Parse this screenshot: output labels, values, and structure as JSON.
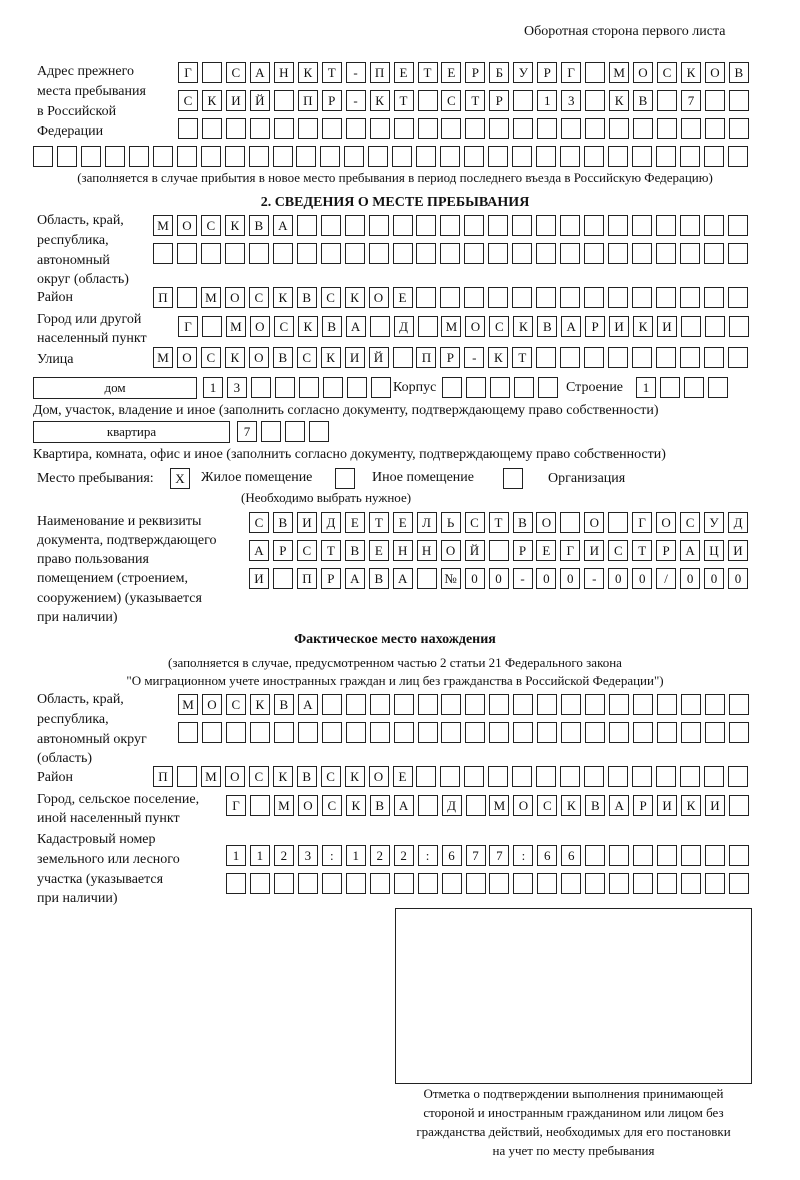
{
  "page_header": "Оборотная сторона первого листа",
  "prev_address": {
    "label_lines": [
      "Адрес прежнего",
      "места пребывания",
      "в Российской",
      "Федерации"
    ],
    "rows": [
      [
        "Г",
        "",
        "С",
        "А",
        "Н",
        "К",
        "Т",
        "-",
        "П",
        "Е",
        "Т",
        "Е",
        "Р",
        "Б",
        "У",
        "Р",
        "Г",
        "",
        "М",
        "О",
        "С",
        "К",
        "О",
        "В"
      ],
      [
        "С",
        "К",
        "И",
        "Й",
        "",
        "П",
        "Р",
        "-",
        "К",
        "Т",
        "",
        "С",
        "Т",
        "Р",
        "",
        "1",
        "3",
        "",
        "К",
        "В",
        "",
        "7",
        "",
        ""
      ],
      [
        "",
        "",
        "",
        "",
        "",
        "",
        "",
        "",
        "",
        "",
        "",
        "",
        "",
        "",
        "",
        "",
        "",
        "",
        "",
        "",
        "",
        "",
        "",
        ""
      ],
      [
        "",
        "",
        "",
        "",
        "",
        "",
        "",
        "",
        "",
        "",
        "",
        "",
        "",
        "",
        "",
        "",
        "",
        "",
        "",
        "",
        "",
        "",
        "",
        "",
        "",
        "",
        "",
        "",
        "",
        ""
      ]
    ],
    "note": "(заполняется в случае прибытия в новое место пребывания в период последнего въезда в Российскую Федерацию)"
  },
  "section2": {
    "title": "2. СВЕДЕНИЯ О МЕСТЕ ПРЕБЫВАНИЯ",
    "region_label_lines": [
      "Область, край,",
      "республика,",
      "автономный",
      "округ (область)"
    ],
    "region_rows": [
      [
        "М",
        "О",
        "С",
        "К",
        "В",
        "А",
        "",
        "",
        "",
        "",
        "",
        "",
        "",
        "",
        "",
        "",
        "",
        "",
        "",
        "",
        "",
        "",
        "",
        "",
        ""
      ],
      [
        "",
        "",
        "",
        "",
        "",
        "",
        "",
        "",
        "",
        "",
        "",
        "",
        "",
        "",
        "",
        "",
        "",
        "",
        "",
        "",
        "",
        "",
        "",
        "",
        ""
      ]
    ],
    "district_label": "Район",
    "district_row": [
      "П",
      "",
      "М",
      "О",
      "С",
      "К",
      "В",
      "С",
      "К",
      "О",
      "Е",
      "",
      "",
      "",
      "",
      "",
      "",
      "",
      "",
      "",
      "",
      "",
      "",
      "",
      ""
    ],
    "city_label_lines": [
      "Город или другой",
      "населенный пункт"
    ],
    "city_row": [
      "Г",
      "",
      "М",
      "О",
      "С",
      "К",
      "В",
      "А",
      "",
      "Д",
      "",
      "М",
      "О",
      "С",
      "К",
      "В",
      "А",
      "Р",
      "И",
      "К",
      "И",
      "",
      "",
      ""
    ],
    "street_label": "Улица",
    "street_row": [
      "М",
      "О",
      "С",
      "К",
      "О",
      "В",
      "С",
      "К",
      "И",
      "Й",
      "",
      "П",
      "Р",
      "-",
      "К",
      "Т",
      "",
      "",
      "",
      "",
      "",
      "",
      "",
      "",
      ""
    ],
    "house_type": "дом",
    "house_row": [
      "1",
      "3",
      "",
      "",
      "",
      "",
      "",
      ""
    ],
    "korpus_label": "Корпус",
    "korpus_row": [
      "",
      "",
      "",
      "",
      ""
    ],
    "building_label": "Строение",
    "building_row": [
      "1",
      "",
      "",
      ""
    ],
    "house_note": "Дом, участок, владение и иное (заполнить согласно документу, подтверждающему право собственности)",
    "flat_type": "квартира",
    "flat_row": [
      "7",
      "",
      "",
      ""
    ],
    "flat_note": "Квартира, комната, офис и иное (заполнить согласно документу, подтверждающему право собственности)",
    "stay_place_label": "Место пребывания:",
    "stay_options": [
      {
        "label": "Жилое помещение",
        "mark": "Х"
      },
      {
        "label": "Иное помещение",
        "mark": ""
      },
      {
        "label": "Организация",
        "mark": ""
      }
    ],
    "stay_note": "(Необходимо выбрать нужное)",
    "doc_label_lines": [
      "Наименование и реквизиты",
      "документа, подтверждающего",
      "право пользования",
      "помещением (строением,",
      "сооружением) (указывается",
      "при наличии)"
    ],
    "doc_rows": [
      [
        "С",
        "В",
        "И",
        "Д",
        "Е",
        "Т",
        "Е",
        "Л",
        "Ь",
        "С",
        "Т",
        "В",
        "О",
        "",
        "О",
        "",
        "Г",
        "О",
        "С",
        "У",
        "Д"
      ],
      [
        "А",
        "Р",
        "С",
        "Т",
        "В",
        "Е",
        "Н",
        "Н",
        "О",
        "Й",
        "",
        "Р",
        "Е",
        "Г",
        "И",
        "С",
        "Т",
        "Р",
        "А",
        "Ц",
        "И"
      ],
      [
        "И",
        "",
        "П",
        "Р",
        "А",
        "В",
        "А",
        "",
        "№",
        "0",
        "0",
        "-",
        "0",
        "0",
        "-",
        "0",
        "0",
        "/",
        "0",
        "0",
        "0"
      ]
    ]
  },
  "actual": {
    "title": "Фактическое место нахождения",
    "note_lines": [
      "(заполняется в случае, предусмотренном частью 2 статьи 21 Федерального закона",
      "\"О миграционном учете иностранных граждан и лиц без гражданства в Российской Федерации\")"
    ],
    "region_label_lines": [
      "Область, край,",
      "республика,",
      "автономный округ",
      "(область)"
    ],
    "region_rows": [
      [
        "М",
        "О",
        "С",
        "К",
        "В",
        "А",
        "",
        "",
        "",
        "",
        "",
        "",
        "",
        "",
        "",
        "",
        "",
        "",
        "",
        "",
        "",
        "",
        "",
        ""
      ],
      [
        "",
        "",
        "",
        "",
        "",
        "",
        "",
        "",
        "",
        "",
        "",
        "",
        "",
        "",
        "",
        "",
        "",
        "",
        "",
        "",
        "",
        "",
        "",
        ""
      ]
    ],
    "district_label": "Район",
    "district_row": [
      "П",
      "",
      "М",
      "О",
      "С",
      "К",
      "В",
      "С",
      "К",
      "О",
      "Е",
      "",
      "",
      "",
      "",
      "",
      "",
      "",
      "",
      "",
      "",
      "",
      "",
      "",
      ""
    ],
    "city_label_lines": [
      "Город, сельское поселение,",
      "иной населенный пункт"
    ],
    "city_row": [
      "Г",
      "",
      "М",
      "О",
      "С",
      "К",
      "В",
      "А",
      "",
      "Д",
      "",
      "М",
      "О",
      "С",
      "К",
      "В",
      "А",
      "Р",
      "И",
      "К",
      "И",
      ""
    ],
    "cadastral_label_lines": [
      "Кадастровый номер",
      "земельного или лесного",
      "участка (указывается",
      "при наличии)"
    ],
    "cadastral_rows": [
      [
        "1",
        "1",
        "2",
        "3",
        ":",
        "1",
        "2",
        "2",
        ":",
        "6",
        "7",
        "7",
        ":",
        "6",
        "6",
        "",
        "",
        "",
        "",
        "",
        "",
        ""
      ],
      [
        "",
        "",
        "",
        "",
        "",
        "",
        "",
        "",
        "",
        "",
        "",
        "",
        "",
        "",
        "",
        "",
        "",
        "",
        "",
        "",
        "",
        ""
      ]
    ]
  },
  "stamp_caption_lines": [
    "Отметка о подтверждении выполнения принимающей",
    "стороной и иностранным гражданином или лицом без",
    "гражданства действий, необходимых для его постановки",
    "на учет по месту пребывания"
  ]
}
